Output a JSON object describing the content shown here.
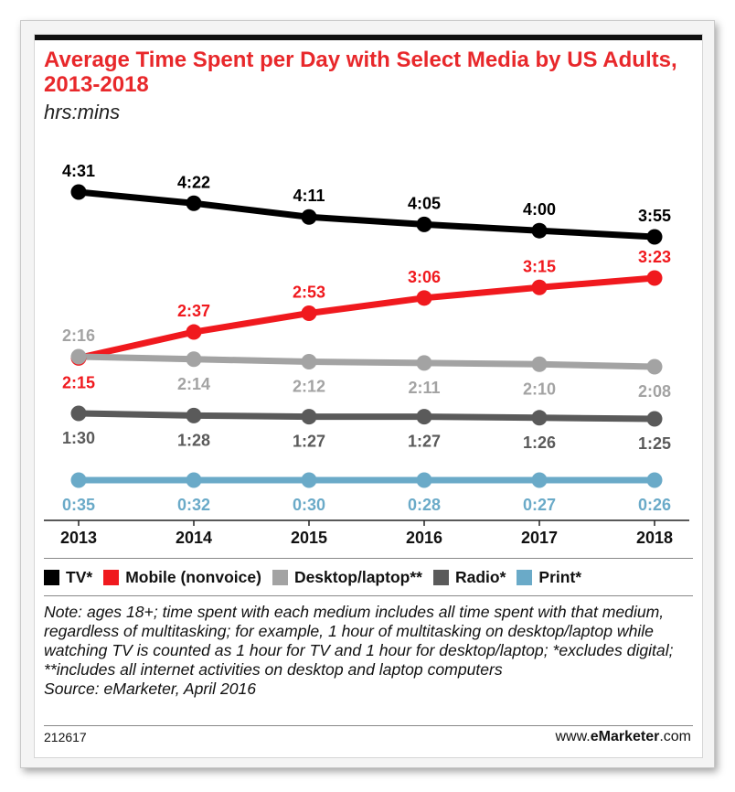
{
  "title": "Average Time Spent per Day with Select Media by US Adults, 2013-2018",
  "subtitle": "hrs:mins",
  "chart_data": {
    "type": "line",
    "title": "Average Time Spent per Day with Select Media by US Adults, 2013-2018",
    "subtitle": "hrs:mins",
    "x": [
      "2013",
      "2014",
      "2015",
      "2016",
      "2017",
      "2018"
    ],
    "xlabel": "",
    "ylabel": "",
    "grid": false,
    "legend_position": "bottom",
    "series": [
      {
        "name": "TV*",
        "color": "#000000",
        "label_pos": "above",
        "values": [
          "4:31",
          "4:22",
          "4:11",
          "4:05",
          "4:00",
          "3:55"
        ],
        "minutes": [
          271,
          262,
          251,
          245,
          240,
          235
        ]
      },
      {
        "name": "Mobile (nonvoice)",
        "color": "#f0191e",
        "label_pos": "above",
        "values": [
          "2:15",
          "2:37",
          "2:53",
          "3:06",
          "3:15",
          "3:23"
        ],
        "minutes": [
          135,
          157,
          173,
          186,
          195,
          203
        ]
      },
      {
        "name": "Desktop/laptop**",
        "color": "#a3a3a3",
        "label_pos": "below",
        "values": [
          "2:16",
          "2:14",
          "2:12",
          "2:11",
          "2:10",
          "2:08"
        ],
        "minutes": [
          136,
          134,
          132,
          131,
          130,
          128
        ]
      },
      {
        "name": "Radio*",
        "color": "#5a5a5a",
        "label_pos": "below",
        "values": [
          "1:30",
          "1:28",
          "1:27",
          "1:27",
          "1:26",
          "1:25"
        ],
        "minutes": [
          90,
          88,
          87,
          87,
          86,
          85
        ]
      },
      {
        "name": "Print*",
        "color": "#6aaac8",
        "label_pos": "below",
        "values": [
          "0:35",
          "0:32",
          "0:30",
          "0:28",
          "0:27",
          "0:26"
        ],
        "minutes": [
          35,
          32,
          30,
          28,
          27,
          26
        ]
      }
    ]
  },
  "note": "Note: ages 18+; time spent with each medium includes all time spent with that medium, regardless of multitasking; for example, 1 hour of multitasking on desktop/laptop while watching TV is counted as 1 hour for TV and 1 hour for desktop/laptop; *excludes digital; **includes all internet activities on desktop and laptop computers",
  "source": "Source: eMarketer, April 2016",
  "chart_id": "212617",
  "brand_prefix": "www.",
  "brand_name": "eMarketer",
  "brand_suffix": ".com"
}
